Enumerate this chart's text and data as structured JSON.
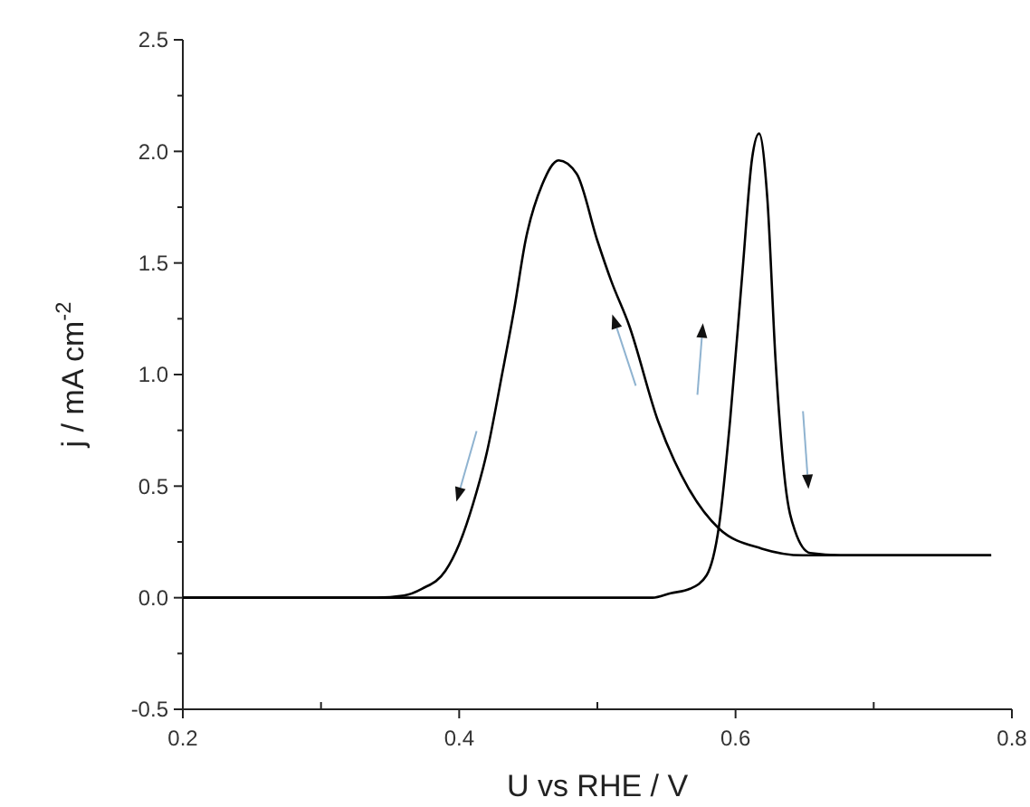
{
  "chart_data": {
    "type": "line",
    "xlabel": "U vs RHE / V",
    "ylabel": "j / mA cm$^{-2}$",
    "xlim": [
      0.2,
      0.8
    ],
    "ylim": [
      -0.5,
      2.5
    ],
    "xticks": [
      0.2,
      {
        "value": 0.3,
        "label": null
      },
      0.4,
      {
        "value": 0.5,
        "label": null
      },
      0.6,
      {
        "value": 0.7,
        "label": null
      },
      0.8
    ],
    "yticks": [
      -0.5,
      {
        "value": -0.25,
        "label": null
      },
      {
        "value": 0,
        "label": "0.0"
      },
      {
        "value": 0.25,
        "label": null
      },
      0.5,
      {
        "value": 0.75,
        "label": null
      },
      {
        "value": 1,
        "label": "1.0"
      },
      {
        "value": 1.25,
        "label": null
      },
      1.5,
      {
        "value": 1.75,
        "label": null
      },
      {
        "value": 2,
        "label": "2.0"
      },
      {
        "value": 2.25,
        "label": null
      },
      2.5
    ],
    "grid": false,
    "marker": "none",
    "line_style": "solid",
    "series": [
      {
        "color": "#000000",
        "x": [
          0.2,
          0.3,
          0.34,
          0.36,
          0.373,
          0.39,
          0.4,
          0.41,
          0.42,
          0.431,
          0.44,
          0.448,
          0.46,
          0.472,
          0.485,
          0.5,
          0.51,
          0.523,
          0.544,
          0.566,
          0.588,
          0.619,
          0.649,
          0.785
        ],
        "values": [
          0,
          0,
          0.0,
          0.01,
          0.04,
          0.12,
          0.24,
          0.42,
          0.65,
          1.0,
          1.3,
          1.6,
          1.85,
          1.96,
          1.9,
          1.6,
          1.42,
          1.22,
          0.79,
          0.49,
          0.31,
          0.22,
          0.19,
          0.19
        ]
      },
      {
        "color": "#000000",
        "x": [
          0.2,
          0.5,
          0.54,
          0.553,
          0.567,
          0.579,
          0.588,
          0.596,
          0.605,
          0.612,
          0.617,
          0.623,
          0.629,
          0.636,
          0.643,
          0.654,
          0.676,
          0.785
        ],
        "values": [
          0,
          0,
          0.0,
          0.02,
          0.04,
          0.1,
          0.32,
          0.79,
          1.46,
          1.97,
          2.08,
          1.79,
          1.06,
          0.51,
          0.3,
          0.2,
          0.19,
          0.19
        ]
      }
    ]
  }
}
